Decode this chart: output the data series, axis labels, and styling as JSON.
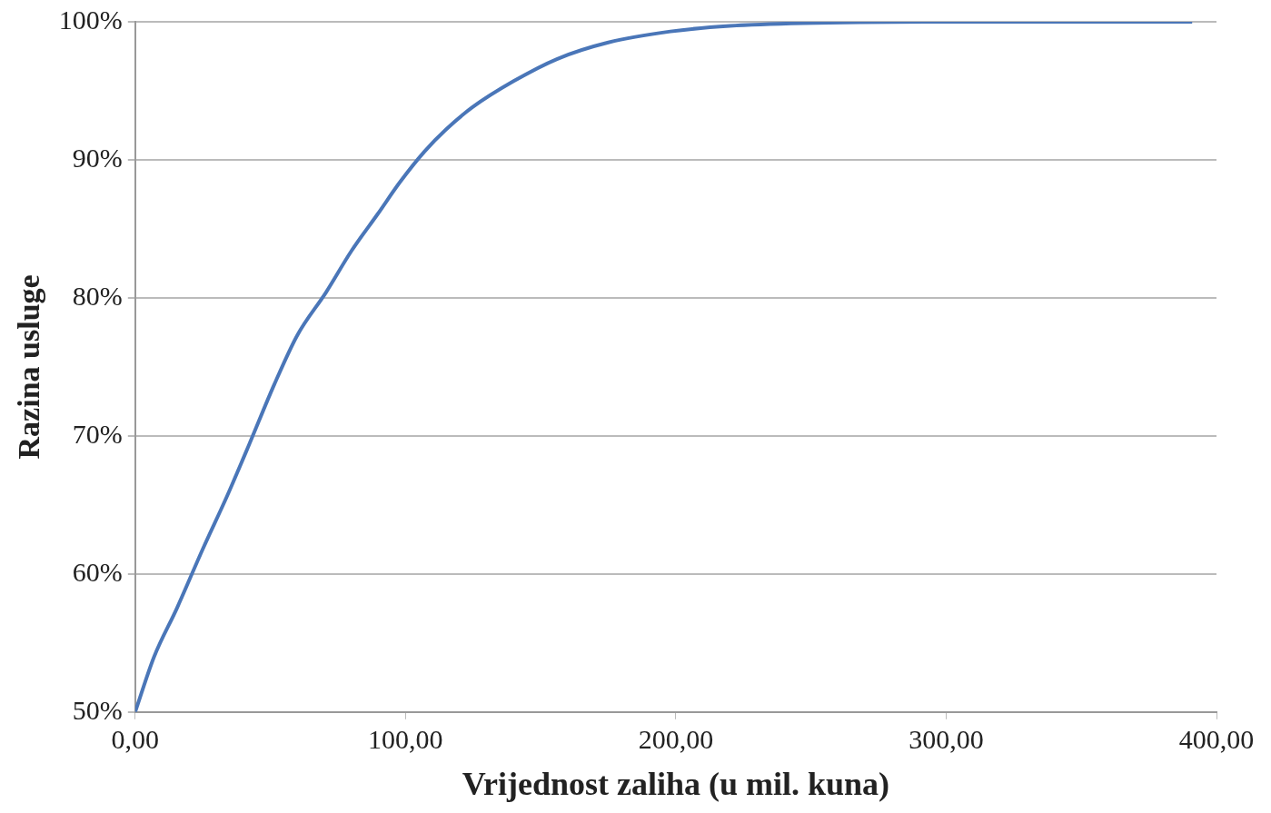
{
  "chart_data": {
    "type": "line",
    "xlabel": "Vrijednost zaliha (u mil. kuna)",
    "ylabel": "Razina usluge",
    "x": [
      0,
      7,
      15.4,
      25,
      33.9,
      42,
      51.4,
      60,
      70.6,
      80,
      89.8,
      98,
      107,
      115,
      124.7,
      140,
      156,
      175,
      198,
      220,
      247,
      300,
      350,
      391
    ],
    "series": [
      {
        "color": "#4a76b8",
        "values": [
          50,
          54,
          57.5,
          61.8,
          65.6,
          69.3,
          73.7,
          77.3,
          80.4,
          83.4,
          86.1,
          88.4,
          90.6,
          92.2,
          93.8,
          95.7,
          97.3,
          98.5,
          99.3,
          99.7,
          99.9,
          100,
          100,
          100
        ]
      }
    ],
    "xlim": [
      0,
      400
    ],
    "xticks": [
      {
        "value": 0,
        "label": "0,00"
      },
      {
        "value": 100,
        "label": "100,00"
      },
      {
        "value": 200,
        "label": "200,00"
      },
      {
        "value": 300,
        "label": "300,00"
      },
      {
        "value": 400,
        "label": "400,00"
      }
    ],
    "ylim": [
      50,
      100
    ],
    "yticks": [
      {
        "value": 50,
        "label": "50%"
      },
      {
        "value": 60,
        "label": "60%"
      },
      {
        "value": 70,
        "label": "70%"
      },
      {
        "value": 80,
        "label": "80%"
      },
      {
        "value": 90,
        "label": "90%"
      },
      {
        "value": 100,
        "label": "100%"
      }
    ],
    "grid": "y",
    "marker": "none",
    "line_style": "solid",
    "legend": false
  }
}
